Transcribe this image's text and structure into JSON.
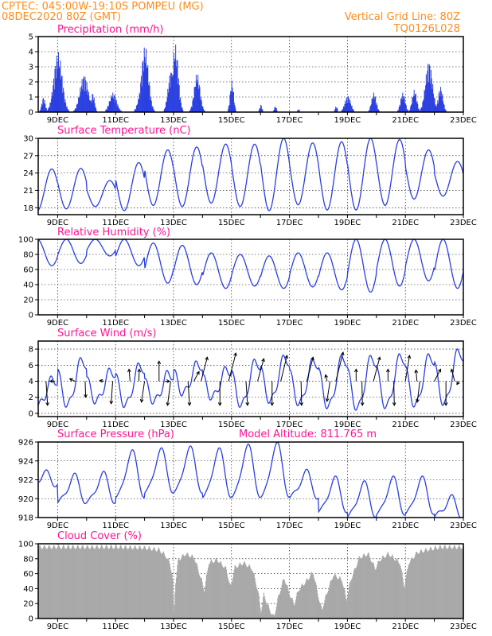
{
  "header": {
    "line1_left": "CPTEC:   045:00W-19:10S   POMPEU (MG)",
    "line2_left": "08DEC2020 80Z (GMT)",
    "line2_right": "Vertical Grid Line: 80Z",
    "line3_right": "TQ0126L028"
  },
  "colors": {
    "header": "#ff8c1a",
    "panel_title": "#ff1493",
    "series": "#2a3fe0",
    "cloud": "#a9a9a9",
    "wind_arrow": "#000000"
  },
  "x_axis": {
    "labels": [
      "9DEC",
      "11DEC",
      "13DEC",
      "15DEC",
      "17DEC",
      "19DEC",
      "21DEC",
      "23DEC"
    ],
    "range_days": [
      8.33,
      23.0
    ],
    "label_positions_days": [
      9,
      11,
      13,
      15,
      17,
      19,
      21,
      23
    ]
  },
  "chart_data": [
    {
      "id": "precip",
      "type": "bar",
      "title": "Precipitation (mm/h)",
      "ylim": [
        0,
        5
      ],
      "yticks": [
        0,
        1,
        2,
        3,
        4,
        5
      ],
      "peaks": [
        {
          "day": 8.5,
          "value": 1.0,
          "width": 0.15
        },
        {
          "day": 9.0,
          "value": 4.0,
          "width": 0.35
        },
        {
          "day": 9.9,
          "value": 2.5,
          "width": 0.35
        },
        {
          "day": 10.2,
          "value": 1.3,
          "width": 0.15
        },
        {
          "day": 10.9,
          "value": 1.3,
          "width": 0.3
        },
        {
          "day": 11.85,
          "value": 1.2,
          "width": 0.25
        },
        {
          "day": 12.0,
          "value": 4.4,
          "width": 0.3
        },
        {
          "day": 12.9,
          "value": 2.8,
          "width": 0.25
        },
        {
          "day": 13.05,
          "value": 4.5,
          "width": 0.25
        },
        {
          "day": 13.8,
          "value": 2.6,
          "width": 0.25
        },
        {
          "day": 15.0,
          "value": 2.1,
          "width": 0.15
        },
        {
          "day": 16.0,
          "value": 0.5,
          "width": 0.1
        },
        {
          "day": 16.5,
          "value": 0.4,
          "width": 0.1
        },
        {
          "day": 17.3,
          "value": 0.2,
          "width": 0.1
        },
        {
          "day": 18.6,
          "value": 0.4,
          "width": 0.1
        },
        {
          "day": 19.0,
          "value": 1.1,
          "width": 0.25
        },
        {
          "day": 19.9,
          "value": 1.3,
          "width": 0.2
        },
        {
          "day": 20.9,
          "value": 1.3,
          "width": 0.2
        },
        {
          "day": 21.3,
          "value": 1.5,
          "width": 0.2
        },
        {
          "day": 21.8,
          "value": 3.4,
          "width": 0.3
        },
        {
          "day": 22.2,
          "value": 1.7,
          "width": 0.2
        }
      ]
    },
    {
      "id": "temp",
      "type": "line",
      "title": "Surface Temperature (nC)",
      "ylim": [
        16.8,
        30.0
      ],
      "yticks": [
        18,
        21,
        24,
        27,
        30
      ],
      "daily": [
        {
          "tmin": 17.5,
          "tmax": 24.7
        },
        {
          "tmin": 17.8,
          "tmax": 24.8
        },
        {
          "tmin": 18.2,
          "tmax": 22.7
        },
        {
          "tmin": 17.5,
          "tmax": 25.8
        },
        {
          "tmin": 18.4,
          "tmax": 28.0
        },
        {
          "tmin": 18.2,
          "tmax": 28.5
        },
        {
          "tmin": 18.8,
          "tmax": 29.0
        },
        {
          "tmin": 18.2,
          "tmax": 29.0
        },
        {
          "tmin": 17.5,
          "tmax": 30.0
        },
        {
          "tmin": 18.5,
          "tmax": 29.2
        },
        {
          "tmin": 17.6,
          "tmax": 29.4
        },
        {
          "tmin": 17.6,
          "tmax": 30.0
        },
        {
          "tmin": 18.4,
          "tmax": 29.8
        },
        {
          "tmin": 19.5,
          "tmax": 28.0
        },
        {
          "tmin": 20.0,
          "tmax": 26.0
        }
      ]
    },
    {
      "id": "rh",
      "type": "line",
      "title": "Relative Humidity (%)",
      "ylim": [
        0,
        100
      ],
      "yticks": [
        0,
        20,
        40,
        60,
        80,
        100
      ],
      "daily": [
        {
          "min": 65,
          "max": 100
        },
        {
          "min": 68,
          "max": 100
        },
        {
          "min": 78,
          "max": 100
        },
        {
          "min": 65,
          "max": 100
        },
        {
          "min": 42,
          "max": 95
        },
        {
          "min": 40,
          "max": 92
        },
        {
          "min": 35,
          "max": 82
        },
        {
          "min": 38,
          "max": 80
        },
        {
          "min": 35,
          "max": 78
        },
        {
          "min": 37,
          "max": 82
        },
        {
          "min": 33,
          "max": 82
        },
        {
          "min": 30,
          "max": 100
        },
        {
          "min": 38,
          "max": 100
        },
        {
          "min": 45,
          "max": 100
        },
        {
          "min": 35,
          "max": 100
        }
      ]
    },
    {
      "id": "wind",
      "type": "line",
      "title": "Surface Wind (m/s)",
      "ylim": [
        -0.4,
        9.0
      ],
      "yticks": [
        0,
        2,
        4,
        6,
        8
      ],
      "daily": [
        {
          "min": 1.0,
          "max": 4.3
        },
        {
          "min": 1.0,
          "max": 6.7
        },
        {
          "min": 1.5,
          "max": 5.3
        },
        {
          "min": 1.0,
          "max": 6.0
        },
        {
          "min": 1.5,
          "max": 5.0
        },
        {
          "min": 2.5,
          "max": 6.2
        },
        {
          "min": 2.0,
          "max": 5.5
        },
        {
          "min": 1.0,
          "max": 6.5
        },
        {
          "min": 1.5,
          "max": 7.0
        },
        {
          "min": 1.2,
          "max": 6.6
        },
        {
          "min": 0.8,
          "max": 7.0
        },
        {
          "min": 0.6,
          "max": 7.0
        },
        {
          "min": 0.8,
          "max": 7.2
        },
        {
          "min": 1.0,
          "max": 7.2
        },
        {
          "min": 1.2,
          "max": 7.8
        }
      ],
      "arrows": [
        {
          "day": 8.6,
          "dx": 0.3,
          "dy": -3.0
        },
        {
          "day": 8.9,
          "dx": -0.9,
          "dy": 0.0
        },
        {
          "day": 9.6,
          "dx": -1.0,
          "dy": 0.3
        },
        {
          "day": 9.95,
          "dx": 0.1,
          "dy": -2.0
        },
        {
          "day": 10.6,
          "dx": -0.8,
          "dy": 0.1
        },
        {
          "day": 10.9,
          "dx": -0.3,
          "dy": -2.8
        },
        {
          "day": 11.5,
          "dx": -0.2,
          "dy": 1.5
        },
        {
          "day": 11.8,
          "dx": 0.1,
          "dy": 1.5
        },
        {
          "day": 12.0,
          "dx": -0.6,
          "dy": -2.6
        },
        {
          "day": 12.5,
          "dx": 0.0,
          "dy": 2.5
        },
        {
          "day": 12.7,
          "dx": 0.9,
          "dy": 0.0
        },
        {
          "day": 12.9,
          "dx": -0.6,
          "dy": -3.0
        },
        {
          "day": 13.5,
          "dx": 0.3,
          "dy": -3.0
        },
        {
          "day": 13.7,
          "dx": 1.0,
          "dy": 1.2
        },
        {
          "day": 13.95,
          "dx": 1.2,
          "dy": 3.0
        },
        {
          "day": 14.6,
          "dx": 0.0,
          "dy": -3.0
        },
        {
          "day": 14.9,
          "dx": 1.4,
          "dy": 3.5
        },
        {
          "day": 15.5,
          "dx": 0.3,
          "dy": -3.0
        },
        {
          "day": 15.9,
          "dx": 1.2,
          "dy": 2.8
        },
        {
          "day": 16.4,
          "dx": 0.0,
          "dy": -3.0
        },
        {
          "day": 16.7,
          "dx": 1.2,
          "dy": 3.2
        },
        {
          "day": 17.4,
          "dx": 0.1,
          "dy": -3.0
        },
        {
          "day": 17.6,
          "dx": 1.2,
          "dy": 3.0
        },
        {
          "day": 18.3,
          "dx": -0.3,
          "dy": 0.8
        },
        {
          "day": 18.4,
          "dx": -0.6,
          "dy": -2.5
        },
        {
          "day": 18.6,
          "dx": 1.4,
          "dy": 3.6
        },
        {
          "day": 19.3,
          "dx": 0.0,
          "dy": 1.5
        },
        {
          "day": 19.5,
          "dx": 0.1,
          "dy": -3.0
        },
        {
          "day": 19.9,
          "dx": 1.2,
          "dy": 3.0
        },
        {
          "day": 20.4,
          "dx": 0.0,
          "dy": 1.5
        },
        {
          "day": 20.6,
          "dx": 0.1,
          "dy": -3.0
        },
        {
          "day": 21.0,
          "dx": 0.8,
          "dy": 3.2
        },
        {
          "day": 21.4,
          "dx": -0.2,
          "dy": 1.4
        },
        {
          "day": 21.5,
          "dx": -0.5,
          "dy": -2.6
        },
        {
          "day": 22.0,
          "dx": 1.2,
          "dy": 1.5
        },
        {
          "day": 22.4,
          "dx": 0.0,
          "dy": -3.0
        },
        {
          "day": 22.7,
          "dx": -0.6,
          "dy": 1.5
        },
        {
          "day": 22.85,
          "dx": -0.4,
          "dy": -0.4
        }
      ]
    },
    {
      "id": "pressure",
      "type": "line",
      "title": "Surface Pressure (hPa)",
      "subtitle": "Model Altitude: 811.765 m",
      "ylim": [
        918,
        926
      ],
      "yticks": [
        918,
        920,
        922,
        924,
        926
      ],
      "daily": [
        {
          "min": 921.5,
          "max": 922.6
        },
        {
          "min": 919.5,
          "max": 922.3
        },
        {
          "min": 919.5,
          "max": 922.5
        },
        {
          "min": 920.0,
          "max": 924.8
        },
        {
          "min": 920.5,
          "max": 925.0
        },
        {
          "min": 920.5,
          "max": 925.2
        },
        {
          "min": 920.0,
          "max": 925.0
        },
        {
          "min": 920.0,
          "max": 925.4
        },
        {
          "min": 920.0,
          "max": 925.6
        },
        {
          "min": 920.0,
          "max": 922.7
        },
        {
          "min": 918.5,
          "max": 922.0
        },
        {
          "min": 918.0,
          "max": 921.5
        },
        {
          "min": 918.2,
          "max": 922.0
        },
        {
          "min": 918.3,
          "max": 922.0
        },
        {
          "min": 918.0,
          "max": 920.0
        }
      ]
    },
    {
      "id": "cloud",
      "type": "bar",
      "title": "Cloud Cover (%)",
      "ylim": [
        0,
        100
      ],
      "yticks": [
        0,
        20,
        40,
        60,
        80,
        100
      ],
      "points": [
        [
          8.3,
          99
        ],
        [
          9.0,
          99
        ],
        [
          10.0,
          99
        ],
        [
          11.0,
          99
        ],
        [
          12.0,
          98
        ],
        [
          12.5,
          95
        ],
        [
          12.7,
          88
        ],
        [
          12.85,
          78
        ],
        [
          12.95,
          60
        ],
        [
          13.0,
          8
        ],
        [
          13.05,
          50
        ],
        [
          13.15,
          82
        ],
        [
          13.4,
          90
        ],
        [
          13.7,
          85
        ],
        [
          13.95,
          55
        ],
        [
          14.05,
          40
        ],
        [
          14.2,
          78
        ],
        [
          14.5,
          82
        ],
        [
          14.8,
          70
        ],
        [
          14.95,
          45
        ],
        [
          15.1,
          72
        ],
        [
          15.4,
          78
        ],
        [
          15.7,
          70
        ],
        [
          15.9,
          40
        ],
        [
          16.0,
          12
        ],
        [
          16.1,
          35
        ],
        [
          16.3,
          15
        ],
        [
          16.45,
          5
        ],
        [
          16.6,
          32
        ],
        [
          16.8,
          58
        ],
        [
          17.0,
          35
        ],
        [
          17.15,
          22
        ],
        [
          17.3,
          42
        ],
        [
          17.6,
          55
        ],
        [
          17.8,
          66
        ],
        [
          18.0,
          30
        ],
        [
          18.1,
          15
        ],
        [
          18.3,
          40
        ],
        [
          18.5,
          62
        ],
        [
          18.8,
          55
        ],
        [
          18.95,
          28
        ],
        [
          19.1,
          55
        ],
        [
          19.4,
          85
        ],
        [
          19.7,
          90
        ],
        [
          19.95,
          70
        ],
        [
          20.1,
          82
        ],
        [
          20.4,
          90
        ],
        [
          20.8,
          78
        ],
        [
          20.95,
          45
        ],
        [
          21.1,
          78
        ],
        [
          21.4,
          92
        ],
        [
          21.8,
          96
        ],
        [
          22.2,
          99
        ],
        [
          23.0,
          99
        ]
      ]
    }
  ]
}
